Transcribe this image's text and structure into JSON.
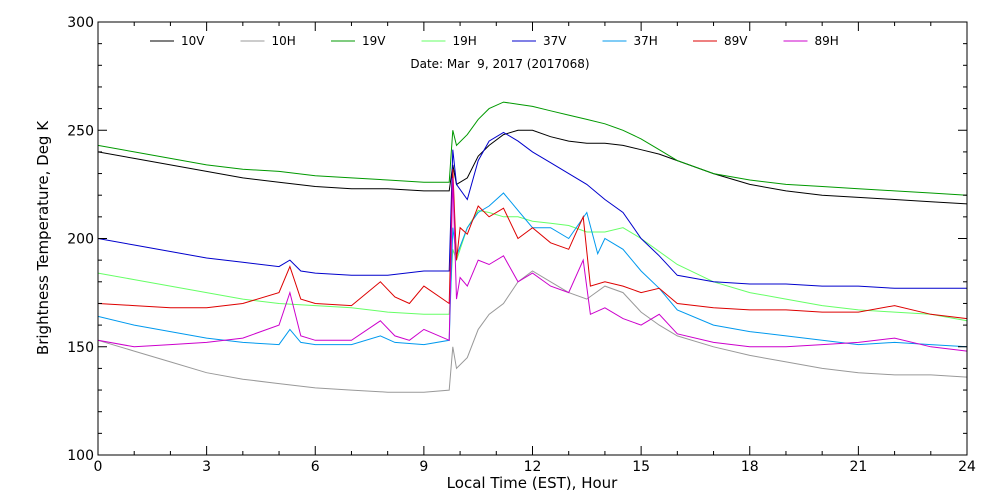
{
  "chart_data": {
    "type": "line",
    "subtitle": "Date: Mar  9, 2017 (2017068)",
    "xlabel": "Local Time (EST), Hour",
    "ylabel": "Brightness Temperature, Deg K",
    "xlim": [
      0,
      24
    ],
    "ylim": [
      100,
      300
    ],
    "xticks": [
      0,
      3,
      6,
      9,
      12,
      15,
      18,
      21,
      24
    ],
    "yticks": [
      100,
      150,
      200,
      250,
      300
    ],
    "grid": false,
    "legend_position": "top",
    "series": [
      {
        "name": "10V",
        "color": "#000000",
        "x": [
          0,
          1,
          2,
          3,
          4,
          5,
          6,
          7,
          8,
          9,
          9.7,
          9.8,
          9.9,
          10.2,
          10.5,
          10.8,
          11.2,
          11.6,
          12,
          12.5,
          13,
          13.5,
          14,
          14.5,
          15,
          15.5,
          16,
          17,
          18,
          19,
          20,
          21,
          22,
          23,
          24
        ],
        "y": [
          240,
          237,
          234,
          231,
          228,
          226,
          224,
          223,
          223,
          222,
          222,
          234,
          225,
          228,
          238,
          243,
          248,
          250,
          250,
          247,
          245,
          244,
          244,
          243,
          241,
          239,
          236,
          230,
          225,
          222,
          220,
          219,
          218,
          217,
          216
        ]
      },
      {
        "name": "10H",
        "color": "#999999",
        "x": [
          0,
          1,
          2,
          3,
          4,
          5,
          6,
          7,
          8,
          9,
          9.7,
          9.8,
          9.9,
          10.2,
          10.5,
          10.8,
          11.2,
          11.6,
          12,
          12.5,
          13,
          13.5,
          14,
          14.5,
          15,
          15.5,
          16,
          17,
          18,
          19,
          20,
          21,
          22,
          23,
          24
        ],
        "y": [
          153,
          148,
          143,
          138,
          135,
          133,
          131,
          130,
          129,
          129,
          130,
          150,
          140,
          145,
          158,
          165,
          170,
          180,
          185,
          180,
          175,
          172,
          178,
          175,
          166,
          160,
          155,
          150,
          146,
          143,
          140,
          138,
          137,
          137,
          136
        ]
      },
      {
        "name": "19V",
        "color": "#009900",
        "x": [
          0,
          1,
          2,
          3,
          4,
          5,
          6,
          7,
          8,
          9,
          9.7,
          9.8,
          9.9,
          10.2,
          10.5,
          10.8,
          11.2,
          11.6,
          12,
          12.5,
          13,
          13.5,
          14,
          14.5,
          15,
          15.5,
          16,
          17,
          18,
          19,
          20,
          21,
          22,
          23,
          24
        ],
        "y": [
          243,
          240,
          237,
          234,
          232,
          231,
          229,
          228,
          227,
          226,
          226,
          250,
          243,
          248,
          255,
          260,
          263,
          262,
          261,
          259,
          257,
          255,
          253,
          250,
          246,
          241,
          236,
          230,
          227,
          225,
          224,
          223,
          222,
          221,
          220
        ]
      },
      {
        "name": "19H",
        "color": "#66ff66",
        "x": [
          0,
          1,
          2,
          3,
          4,
          5,
          6,
          7,
          8,
          9,
          9.7,
          9.8,
          9.9,
          10.2,
          10.5,
          10.8,
          11.2,
          11.6,
          12,
          12.5,
          13,
          13.5,
          14,
          14.5,
          15,
          15.5,
          16,
          17,
          18,
          19,
          20,
          21,
          22,
          23,
          24
        ],
        "y": [
          184,
          181,
          178,
          175,
          172,
          170,
          169,
          168,
          166,
          165,
          165,
          195,
          190,
          205,
          213,
          212,
          210,
          210,
          208,
          207,
          206,
          203,
          203,
          205,
          200,
          194,
          188,
          180,
          175,
          172,
          169,
          167,
          166,
          165,
          162
        ]
      },
      {
        "name": "37V",
        "color": "#0000cc",
        "x": [
          0,
          1,
          2,
          3,
          4,
          5,
          5.3,
          5.6,
          6,
          7,
          8,
          9,
          9.7,
          9.8,
          9.9,
          10.2,
          10.5,
          10.8,
          11.2,
          11.6,
          12,
          12.5,
          13,
          13.5,
          14,
          14.5,
          15,
          15.5,
          16,
          17,
          18,
          19,
          20,
          21,
          22,
          23,
          24
        ],
        "y": [
          200,
          197,
          194,
          191,
          189,
          187,
          190,
          185,
          184,
          183,
          183,
          185,
          185,
          241,
          225,
          218,
          236,
          245,
          249,
          245,
          240,
          235,
          230,
          225,
          218,
          212,
          200,
          192,
          183,
          180,
          179,
          179,
          178,
          178,
          177,
          177,
          177
        ]
      },
      {
        "name": "37H",
        "color": "#0099ee",
        "x": [
          0,
          1,
          2,
          3,
          4,
          5,
          5.3,
          5.6,
          6,
          7,
          7.8,
          8.2,
          9,
          9.7,
          9.8,
          9.9,
          10.2,
          10.5,
          10.8,
          11.2,
          11.6,
          12,
          12.5,
          13,
          13.5,
          13.8,
          14,
          14.5,
          15,
          15.5,
          16,
          17,
          18,
          19,
          20,
          21,
          22,
          23,
          24
        ],
        "y": [
          164,
          160,
          157,
          154,
          152,
          151,
          158,
          152,
          151,
          151,
          155,
          152,
          151,
          153,
          205,
          192,
          205,
          212,
          215,
          221,
          213,
          205,
          205,
          200,
          212,
          193,
          200,
          195,
          185,
          177,
          167,
          160,
          157,
          155,
          153,
          151,
          152,
          151,
          150
        ]
      },
      {
        "name": "89V",
        "color": "#dd0000",
        "x": [
          0,
          1,
          2,
          3,
          4,
          5,
          5.3,
          5.6,
          6,
          7,
          7.8,
          8.2,
          8.6,
          9,
          9.7,
          9.8,
          9.9,
          10,
          10.2,
          10.5,
          10.8,
          11.2,
          11.6,
          12,
          12.5,
          13,
          13.4,
          13.6,
          14,
          14.5,
          15,
          15.5,
          16,
          17,
          18,
          19,
          20,
          21,
          22,
          23,
          24
        ],
        "y": [
          170,
          169,
          168,
          168,
          170,
          175,
          187,
          172,
          170,
          169,
          180,
          173,
          170,
          178,
          170,
          232,
          190,
          205,
          202,
          215,
          210,
          214,
          200,
          205,
          198,
          195,
          210,
          178,
          180,
          178,
          175,
          177,
          170,
          168,
          167,
          167,
          166,
          166,
          169,
          165,
          163
        ]
      },
      {
        "name": "89H",
        "color": "#cc00cc",
        "x": [
          0,
          1,
          2,
          3,
          4,
          5,
          5.3,
          5.6,
          6,
          7,
          7.8,
          8.2,
          8.6,
          9,
          9.7,
          9.8,
          9.9,
          10,
          10.2,
          10.5,
          10.8,
          11.2,
          11.6,
          12,
          12.5,
          13,
          13.4,
          13.6,
          14,
          14.5,
          15,
          15.5,
          16,
          17,
          18,
          19,
          20,
          21,
          22,
          23,
          24
        ],
        "y": [
          153,
          150,
          151,
          152,
          154,
          160,
          175,
          155,
          153,
          153,
          162,
          155,
          153,
          158,
          153,
          228,
          172,
          182,
          178,
          190,
          188,
          192,
          180,
          184,
          178,
          175,
          190,
          165,
          168,
          163,
          160,
          165,
          156,
          152,
          150,
          150,
          151,
          152,
          154,
          150,
          148
        ]
      }
    ]
  }
}
